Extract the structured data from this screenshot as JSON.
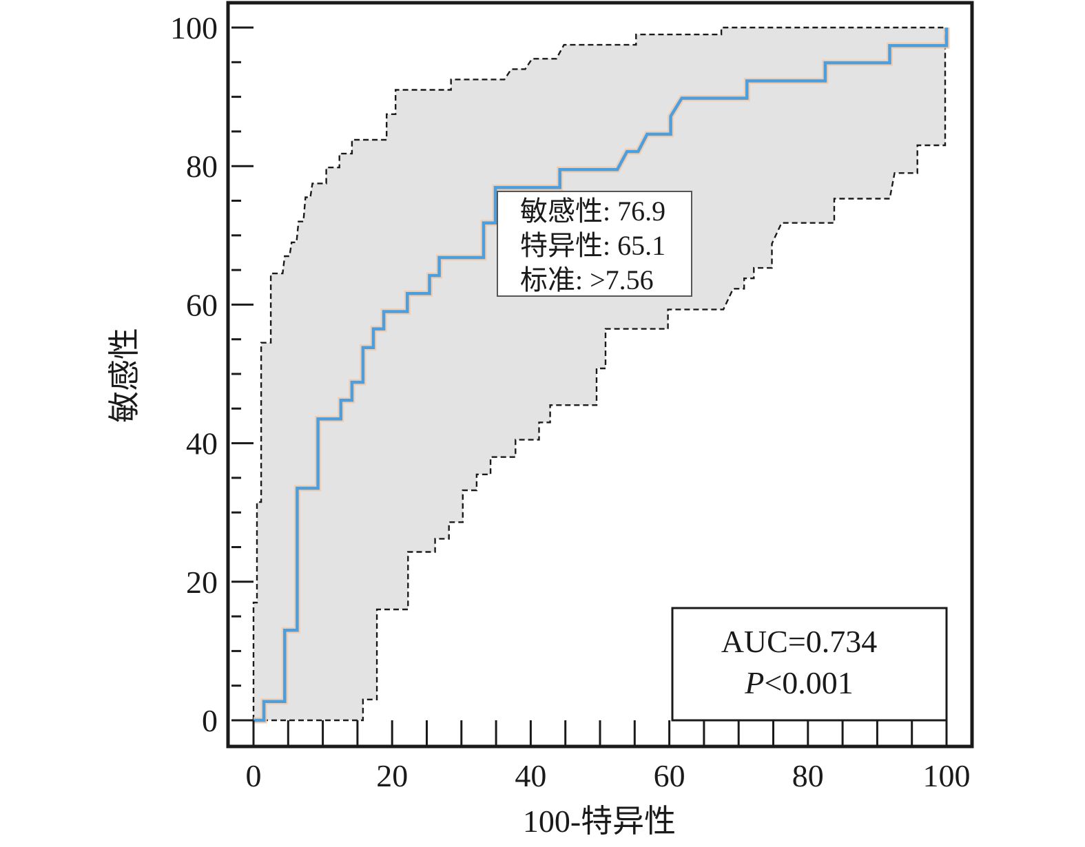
{
  "chart_data": {
    "type": "line",
    "xlabel": "100-特异性",
    "ylabel": "敏感性",
    "xlim": [
      0,
      100
    ],
    "ylim": [
      0,
      100
    ],
    "xticks": [
      0,
      20,
      40,
      60,
      80,
      100
    ],
    "yticks": [
      0,
      20,
      40,
      60,
      80,
      100
    ],
    "grid": false,
    "series": [
      {
        "role": "roc",
        "color": "#4a9fe0",
        "points": [
          [
            0,
            0
          ],
          [
            1.5,
            0
          ],
          [
            1.5,
            2.7
          ],
          [
            4.5,
            2.7
          ],
          [
            4.5,
            13
          ],
          [
            6.3,
            13
          ],
          [
            6.3,
            33.5
          ],
          [
            9.3,
            33.5
          ],
          [
            9.3,
            43.5
          ],
          [
            12.6,
            43.5
          ],
          [
            12.6,
            46.2
          ],
          [
            14.2,
            46.2
          ],
          [
            14.2,
            48.8
          ],
          [
            15.8,
            48.8
          ],
          [
            15.8,
            53.8
          ],
          [
            17.3,
            53.8
          ],
          [
            17.3,
            56.5
          ],
          [
            18.8,
            56.5
          ],
          [
            18.8,
            59
          ],
          [
            22.2,
            59
          ],
          [
            22.2,
            61.6
          ],
          [
            25.4,
            61.6
          ],
          [
            25.4,
            64.2
          ],
          [
            26.8,
            64.2
          ],
          [
            26.8,
            66.8
          ],
          [
            33.2,
            66.8
          ],
          [
            33.2,
            71.8
          ],
          [
            34.9,
            71.8
          ],
          [
            34.9,
            76.9
          ],
          [
            44.2,
            76.9
          ],
          [
            44.2,
            79.5
          ],
          [
            52.5,
            79.5
          ],
          [
            53.9,
            82.1
          ],
          [
            55.5,
            82.1
          ],
          [
            56.8,
            84.6
          ],
          [
            60.2,
            84.6
          ],
          [
            60.2,
            87.2
          ],
          [
            61.8,
            89.8
          ],
          [
            71.2,
            89.8
          ],
          [
            71.2,
            92.3
          ],
          [
            82.5,
            92.3
          ],
          [
            82.5,
            94.9
          ],
          [
            91.8,
            94.9
          ],
          [
            91.8,
            97.4
          ],
          [
            100,
            97.4
          ],
          [
            100,
            100
          ]
        ]
      },
      {
        "role": "ci-upper",
        "color": "#1a1a1a",
        "points": [
          [
            0,
            0
          ],
          [
            0,
            17
          ],
          [
            0.5,
            17
          ],
          [
            0.5,
            31.5
          ],
          [
            1.1,
            31.5
          ],
          [
            1.1,
            54.5
          ],
          [
            2.5,
            54.5
          ],
          [
            2.5,
            64.5
          ],
          [
            4.2,
            64.5
          ],
          [
            4.5,
            67
          ],
          [
            5.2,
            67
          ],
          [
            5.5,
            69
          ],
          [
            6.2,
            69
          ],
          [
            6.5,
            72
          ],
          [
            7.2,
            72
          ],
          [
            7.5,
            75.5
          ],
          [
            8.2,
            75.5
          ],
          [
            8.5,
            77.5
          ],
          [
            10.5,
            77.5
          ],
          [
            10.5,
            79.8
          ],
          [
            12.4,
            79.8
          ],
          [
            12.4,
            81.8
          ],
          [
            14.2,
            81.8
          ],
          [
            14.2,
            83.8
          ],
          [
            19.2,
            83.8
          ],
          [
            19.2,
            87.5
          ],
          [
            20.5,
            87.5
          ],
          [
            20.5,
            91
          ],
          [
            28.5,
            91
          ],
          [
            28.5,
            92.5
          ],
          [
            36.2,
            92.5
          ],
          [
            37.2,
            94
          ],
          [
            39.2,
            94
          ],
          [
            40.2,
            95.5
          ],
          [
            43.7,
            95.5
          ],
          [
            44.8,
            97.5
          ],
          [
            55.2,
            97.5
          ],
          [
            55.2,
            99
          ],
          [
            67.5,
            99
          ],
          [
            67.5,
            100
          ],
          [
            100,
            100
          ]
        ]
      },
      {
        "role": "ci-lower",
        "color": "#1a1a1a",
        "points": [
          [
            0,
            0
          ],
          [
            15.8,
            0
          ],
          [
            15.8,
            3
          ],
          [
            17.8,
            3
          ],
          [
            17.8,
            16
          ],
          [
            22.3,
            16
          ],
          [
            22.3,
            24.3
          ],
          [
            26.2,
            24.3
          ],
          [
            26.2,
            26.2
          ],
          [
            28.2,
            26.2
          ],
          [
            28.2,
            28.6
          ],
          [
            30.2,
            28.6
          ],
          [
            30.2,
            33.2
          ],
          [
            32.2,
            33.2
          ],
          [
            32.2,
            35.5
          ],
          [
            34.2,
            35.5
          ],
          [
            34.2,
            38
          ],
          [
            37.8,
            38
          ],
          [
            37.8,
            40.5
          ],
          [
            41.2,
            40.5
          ],
          [
            41.2,
            43
          ],
          [
            42.8,
            43
          ],
          [
            42.8,
            45.5
          ],
          [
            49.5,
            45.5
          ],
          [
            49.5,
            50.8
          ],
          [
            50.8,
            50.8
          ],
          [
            50.8,
            56.5
          ],
          [
            59.8,
            56.5
          ],
          [
            59.8,
            59.3
          ],
          [
            67.8,
            59.3
          ],
          [
            69.2,
            62.3
          ],
          [
            70.8,
            62.3
          ],
          [
            70.8,
            63.8
          ],
          [
            72.2,
            63.8
          ],
          [
            72.2,
            65.3
          ],
          [
            74.8,
            65.3
          ],
          [
            74.8,
            68.8
          ],
          [
            76.2,
            71.8
          ],
          [
            83.8,
            71.8
          ],
          [
            83.8,
            75.3
          ],
          [
            91.8,
            75.3
          ],
          [
            92.5,
            79
          ],
          [
            95.8,
            79
          ],
          [
            95.8,
            83
          ],
          [
            99.8,
            83
          ],
          [
            99.8,
            100
          ]
        ]
      }
    ],
    "annotation": {
      "lines": [
        "敏感性: 76.9",
        "特异性: 65.1",
        "标准: >7.56"
      ],
      "anchor": [
        34.9,
        76.9
      ]
    },
    "stats_box": {
      "auc": "AUC=0.734",
      "p_symbol": "P",
      "p_rest": "<0.001"
    }
  }
}
